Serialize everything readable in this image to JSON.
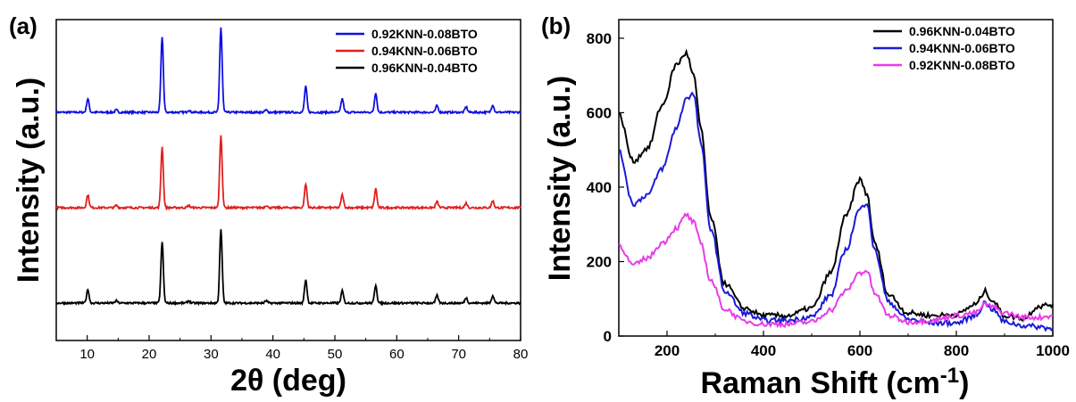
{
  "chart_data": [
    {
      "panel": "(a)",
      "type": "line",
      "xlabel": "2θ (deg)",
      "ylabel": "Intensity (a.u.)",
      "xlim": [
        5,
        80
      ],
      "xticks": [
        10,
        20,
        30,
        40,
        50,
        60,
        70,
        80
      ],
      "y_tick_labels": false,
      "offset_stacked": true,
      "legend_position": "top-right",
      "peaks_2theta": [
        10.1,
        14.7,
        22.1,
        26.4,
        31.6,
        38.9,
        45.3,
        51.2,
        56.6,
        66.5,
        71.2,
        75.5
      ],
      "series": [
        {
          "name": "0.92KNN-0.08BTO",
          "color": "#1010e0",
          "baseline": 0.0,
          "peak_heights": [
            0.18,
            0.03,
            1.0,
            0.03,
            1.12,
            0.03,
            0.34,
            0.18,
            0.26,
            0.09,
            0.07,
            0.1
          ]
        },
        {
          "name": "0.94KNN-0.06BTO",
          "color": "#e02020",
          "baseline": 0.0,
          "peak_heights": [
            0.17,
            0.03,
            0.8,
            0.03,
            0.95,
            0.03,
            0.31,
            0.17,
            0.25,
            0.08,
            0.06,
            0.09
          ]
        },
        {
          "name": "0.96KNN-0.04BTO",
          "color": "#000000",
          "baseline": 0.0,
          "peak_heights": [
            0.18,
            0.03,
            0.81,
            0.03,
            0.97,
            0.03,
            0.31,
            0.16,
            0.24,
            0.1,
            0.07,
            0.1
          ]
        }
      ]
    },
    {
      "panel": "(b)",
      "type": "line",
      "xlabel": "Raman Shift (cm",
      "xlabel_superscript": "-1",
      "xlabel_close": ")",
      "ylabel": "Intensity (a.u.)",
      "xlim": [
        100,
        1000
      ],
      "ylim": [
        0,
        850
      ],
      "xticks": [
        200,
        400,
        600,
        800,
        1000
      ],
      "yticks": [
        0,
        200,
        400,
        600,
        800
      ],
      "legend_position": "top-right",
      "x": [
        100,
        130,
        160,
        190,
        220,
        240,
        255,
        270,
        290,
        320,
        360,
        400,
        450,
        500,
        540,
        570,
        600,
        615,
        630,
        660,
        700,
        750,
        800,
        840,
        860,
        875,
        900,
        940,
        970,
        1000
      ],
      "series": [
        {
          "name": "0.96KNN-0.04BTO",
          "color": "#000000",
          "values": [
            595,
            470,
            505,
            620,
            730,
            760,
            700,
            560,
            320,
            140,
            75,
            55,
            55,
            75,
            170,
            320,
            420,
            380,
            250,
            110,
            62,
            55,
            58,
            85,
            120,
            95,
            55,
            48,
            80,
            85
          ]
        },
        {
          "name": "0.94KNN-0.06BTO",
          "color": "#1a1ad8",
          "values": [
            495,
            355,
            380,
            450,
            560,
            640,
            650,
            520,
            290,
            120,
            62,
            42,
            42,
            52,
            110,
            230,
            340,
            360,
            230,
            90,
            45,
            35,
            35,
            55,
            90,
            72,
            38,
            28,
            25,
            20
          ]
        },
        {
          "name": "0.92KNN-0.08BTO",
          "color": "#e83ce8",
          "values": [
            245,
            190,
            210,
            250,
            290,
            325,
            305,
            250,
            150,
            72,
            40,
            32,
            32,
            38,
            70,
            120,
            170,
            175,
            115,
            55,
            38,
            42,
            55,
            62,
            85,
            78,
            62,
            50,
            50,
            55
          ]
        }
      ]
    }
  ]
}
